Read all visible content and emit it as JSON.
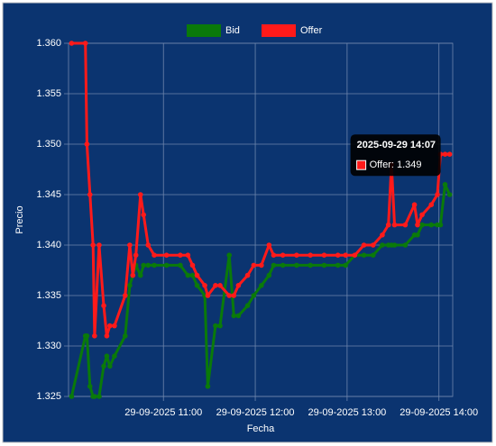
{
  "chart_data": {
    "type": "line",
    "x_label": "Fecha",
    "y_label": "Precio",
    "x": [
      "2025-09-29 10:00",
      "2025-09-29 10:09",
      "2025-09-29 10:10",
      "2025-09-29 10:12",
      "2025-09-29 10:14",
      "2025-09-29 10:15",
      "2025-09-29 10:18",
      "2025-09-29 10:21",
      "2025-09-29 10:23",
      "2025-09-29 10:25",
      "2025-09-29 10:28",
      "2025-09-29 10:35",
      "2025-09-29 10:38",
      "2025-09-29 10:40",
      "2025-09-29 10:42",
      "2025-09-29 10:45",
      "2025-09-29 10:47",
      "2025-09-29 10:50",
      "2025-09-29 10:54",
      "2025-09-29 11:02",
      "2025-09-29 11:11",
      "2025-09-29 11:16",
      "2025-09-29 11:19",
      "2025-09-29 11:22",
      "2025-09-29 11:27",
      "2025-09-29 11:29",
      "2025-09-29 11:34",
      "2025-09-29 11:37",
      "2025-09-29 11:43",
      "2025-09-29 11:46",
      "2025-09-29 11:49",
      "2025-09-29 11:55",
      "2025-09-29 11:59",
      "2025-09-29 12:04",
      "2025-09-29 12:09",
      "2025-09-29 12:12",
      "2025-09-29 12:18",
      "2025-09-29 12:27",
      "2025-09-29 12:36",
      "2025-09-29 12:45",
      "2025-09-29 12:54",
      "2025-09-29 12:59",
      "2025-09-29 13:05",
      "2025-09-29 13:11",
      "2025-09-29 13:17",
      "2025-09-29 13:23",
      "2025-09-29 13:27",
      "2025-09-29 13:29",
      "2025-09-29 13:31",
      "2025-09-29 13:38",
      "2025-09-29 13:44",
      "2025-09-29 13:46",
      "2025-09-29 13:49",
      "2025-09-29 13:55",
      "2025-09-29 13:59",
      "2025-09-29 14:01",
      "2025-09-29 14:04",
      "2025-09-29 14:07"
    ],
    "series": [
      {
        "name": "Bid",
        "color": "#0a7a0a",
        "values": [
          1.325,
          1.331,
          1.331,
          1.326,
          1.325,
          1.325,
          1.325,
          1.328,
          1.329,
          1.328,
          1.329,
          1.331,
          1.336,
          1.337,
          1.338,
          1.337,
          1.338,
          1.338,
          1.338,
          1.338,
          1.338,
          1.337,
          1.337,
          1.336,
          1.335,
          1.326,
          1.332,
          1.332,
          1.339,
          1.333,
          1.333,
          1.334,
          1.335,
          1.336,
          1.337,
          1.338,
          1.338,
          1.338,
          1.338,
          1.338,
          1.338,
          1.338,
          1.339,
          1.339,
          1.339,
          1.34,
          1.34,
          1.34,
          1.34,
          1.34,
          1.341,
          1.341,
          1.342,
          1.342,
          1.342,
          1.342,
          1.346,
          1.345
        ]
      },
      {
        "name": "Offer",
        "color": "#ff1a1a",
        "values": [
          1.36,
          1.36,
          1.35,
          1.345,
          1.34,
          1.331,
          1.34,
          1.334,
          1.331,
          1.332,
          1.332,
          1.335,
          1.34,
          1.337,
          1.339,
          1.345,
          1.343,
          1.34,
          1.339,
          1.339,
          1.339,
          1.339,
          1.338,
          1.337,
          1.336,
          1.335,
          1.336,
          1.336,
          1.335,
          1.335,
          1.336,
          1.337,
          1.338,
          1.338,
          1.34,
          1.339,
          1.339,
          1.339,
          1.339,
          1.339,
          1.339,
          1.339,
          1.339,
          1.34,
          1.34,
          1.341,
          1.342,
          1.348,
          1.342,
          1.342,
          1.344,
          1.342,
          1.343,
          1.344,
          1.345,
          1.349,
          1.349,
          1.349
        ]
      }
    ],
    "xlim": [
      "2025-09-29 09:58",
      "2025-09-29 14:09"
    ],
    "xticks": [
      {
        "value": "2025-09-29 11:00",
        "label": "29-09-2025 11:00"
      },
      {
        "value": "2025-09-29 12:00",
        "label": "29-09-2025 12:00"
      },
      {
        "value": "2025-09-29 13:00",
        "label": "29-09-2025 13:00"
      },
      {
        "value": "2025-09-29 14:00",
        "label": "29-09-2025 14:00"
      }
    ],
    "ylim": [
      1.325,
      1.36
    ],
    "yticks": [
      1.325,
      {
        "value": 1.33,
        "label": "1.330"
      },
      1.335,
      {
        "value": 1.34,
        "label": "1.340"
      },
      1.345,
      {
        "value": 1.35,
        "label": "1.350"
      },
      1.355,
      {
        "value": 1.36,
        "label": "1.360"
      }
    ],
    "grid": true,
    "legend": "top",
    "tooltip": {
      "series": 1,
      "index": 57,
      "title": "2025-09-29 14:07",
      "label": "Offer: 1.349"
    }
  }
}
